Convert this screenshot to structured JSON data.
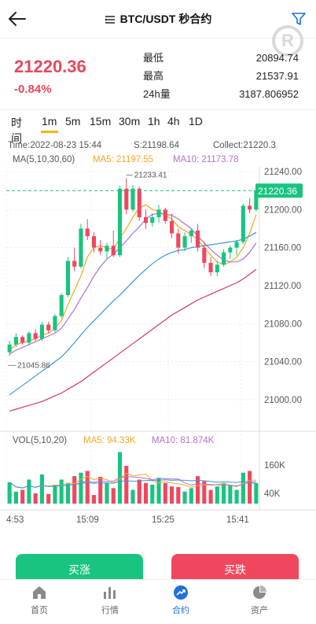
{
  "header": {
    "title": "BTC/USDT 秒合约",
    "watermark": "R"
  },
  "ticker": {
    "price": "21220.36",
    "change": "-0.84%",
    "stats": [
      {
        "label": "最低",
        "value": "20894.74"
      },
      {
        "label": "最高",
        "value": "21537.91"
      },
      {
        "label": "24h量",
        "value": "3187.806952"
      }
    ]
  },
  "timeframes": [
    "时间",
    "1m",
    "5m",
    "15m",
    "30m",
    "1h",
    "4h",
    "1D"
  ],
  "active_timeframe": "1m",
  "chart_info": {
    "time_label": "Time:2022-08-23 15:44",
    "s_label": "S:21198.64",
    "collect_label": "Collect:21220.3",
    "ma_label": "MA(5,10,30,60)",
    "ma5_label": "MA5: 21197.55",
    "ma10_label": "MA10: 21173.78",
    "high_marker": "21233.41",
    "low_marker": "21045.86",
    "current_price_tag": "21220.36",
    "vol_label": "VOL(5,10,20)",
    "vol_ma5": "MA5: 94.33K",
    "vol_ma10": "MA10: 81.874K"
  },
  "colors": {
    "up": "#18c47f",
    "down": "#f0475e",
    "ma5": "#f5a623",
    "ma10": "#b072c9",
    "ma30": "#3a96dd",
    "ma60": "#d6336c",
    "accent": "#1f6fe0"
  },
  "chart_data": {
    "type": "candlestick",
    "y_ticks": [
      "21240.00",
      "21200.00",
      "21160.00",
      "21120.00",
      "21080.00",
      "21040.00",
      "21000.00"
    ],
    "ylim": [
      20990,
      21245
    ],
    "x_ticks": [
      "4:53",
      "15:09",
      "15:25",
      "15:41"
    ],
    "vol_ticks": [
      "160K",
      "40K"
    ],
    "candles": [
      {
        "o": 21050,
        "h": 21062,
        "l": 21046,
        "c": 21058
      },
      {
        "o": 21058,
        "h": 21070,
        "l": 21055,
        "c": 21066
      },
      {
        "o": 21066,
        "h": 21068,
        "l": 21058,
        "c": 21060
      },
      {
        "o": 21060,
        "h": 21072,
        "l": 21057,
        "c": 21070
      },
      {
        "o": 21070,
        "h": 21074,
        "l": 21062,
        "c": 21064
      },
      {
        "o": 21064,
        "h": 21082,
        "l": 21062,
        "c": 21079
      },
      {
        "o": 21079,
        "h": 21082,
        "l": 21070,
        "c": 21073
      },
      {
        "o": 21073,
        "h": 21090,
        "l": 21071,
        "c": 21088
      },
      {
        "o": 21088,
        "h": 21112,
        "l": 21086,
        "c": 21110
      },
      {
        "o": 21110,
        "h": 21150,
        "l": 21108,
        "c": 21146
      },
      {
        "o": 21146,
        "h": 21160,
        "l": 21135,
        "c": 21140
      },
      {
        "o": 21140,
        "h": 21185,
        "l": 21138,
        "c": 21180
      },
      {
        "o": 21180,
        "h": 21190,
        "l": 21168,
        "c": 21172
      },
      {
        "o": 21172,
        "h": 21176,
        "l": 21155,
        "c": 21160
      },
      {
        "o": 21160,
        "h": 21168,
        "l": 21152,
        "c": 21156
      },
      {
        "o": 21156,
        "h": 21165,
        "l": 21148,
        "c": 21162
      },
      {
        "o": 21162,
        "h": 21178,
        "l": 21150,
        "c": 21152
      },
      {
        "o": 21152,
        "h": 21225,
        "l": 21150,
        "c": 21222
      },
      {
        "o": 21222,
        "h": 21233,
        "l": 21195,
        "c": 21200
      },
      {
        "o": 21200,
        "h": 21226,
        "l": 21198,
        "c": 21222
      },
      {
        "o": 21222,
        "h": 21224,
        "l": 21188,
        "c": 21192
      },
      {
        "o": 21192,
        "h": 21200,
        "l": 21180,
        "c": 21186
      },
      {
        "o": 21186,
        "h": 21196,
        "l": 21182,
        "c": 21192
      },
      {
        "o": 21192,
        "h": 21205,
        "l": 21186,
        "c": 21200
      },
      {
        "o": 21200,
        "h": 21202,
        "l": 21185,
        "c": 21188
      },
      {
        "o": 21188,
        "h": 21196,
        "l": 21170,
        "c": 21175
      },
      {
        "o": 21175,
        "h": 21180,
        "l": 21154,
        "c": 21160
      },
      {
        "o": 21160,
        "h": 21176,
        "l": 21156,
        "c": 21172
      },
      {
        "o": 21172,
        "h": 21180,
        "l": 21165,
        "c": 21178
      },
      {
        "o": 21178,
        "h": 21185,
        "l": 21156,
        "c": 21160
      },
      {
        "o": 21160,
        "h": 21166,
        "l": 21138,
        "c": 21144
      },
      {
        "o": 21144,
        "h": 21150,
        "l": 21130,
        "c": 21134
      },
      {
        "o": 21134,
        "h": 21146,
        "l": 21130,
        "c": 21142
      },
      {
        "o": 21142,
        "h": 21158,
        "l": 21140,
        "c": 21155
      },
      {
        "o": 21155,
        "h": 21162,
        "l": 21148,
        "c": 21160
      },
      {
        "o": 21160,
        "h": 21168,
        "l": 21152,
        "c": 21166
      },
      {
        "o": 21166,
        "h": 21206,
        "l": 21164,
        "c": 21204
      },
      {
        "o": 21204,
        "h": 21212,
        "l": 21196,
        "c": 21200
      },
      {
        "o": 21200,
        "h": 21225,
        "l": 21198,
        "c": 21220
      }
    ],
    "volumes": [
      62,
      35,
      40,
      70,
      30,
      85,
      28,
      55,
      70,
      60,
      80,
      90,
      95,
      25,
      78,
      60,
      45,
      150,
      110,
      40,
      70,
      60,
      55,
      75,
      60,
      50,
      48,
      35,
      45,
      80,
      65,
      40,
      50,
      60,
      55,
      40,
      90,
      95,
      60
    ],
    "ma_lines": {
      "ma5": [
        21052,
        21058,
        21060,
        21062,
        21064,
        21068,
        21070,
        21075,
        21083,
        21100,
        21115,
        21130,
        21150,
        21160,
        21162,
        21160,
        21158,
        21170,
        21180,
        21192,
        21202,
        21205,
        21200,
        21198,
        21194,
        21190,
        21182,
        21178,
        21174,
        21168,
        21160,
        21152,
        21145,
        21142,
        21145,
        21150,
        21160,
        21175,
        21195
      ],
      "ma10": [
        21048,
        21052,
        21055,
        21058,
        21061,
        21064,
        21067,
        21070,
        21075,
        21085,
        21095,
        21107,
        21118,
        21130,
        21140,
        21148,
        21153,
        21160,
        21167,
        21175,
        21182,
        21190,
        21195,
        21196,
        21195,
        21194,
        21190,
        21185,
        21180,
        21172,
        21165,
        21158,
        21152,
        21147,
        21145,
        21145,
        21148,
        21155,
        21165
      ],
      "ma30": [
        21005,
        21010,
        21015,
        21020,
        21025,
        21030,
        21035,
        21040,
        21045,
        21052,
        21060,
        21068,
        21076,
        21083,
        21090,
        21097,
        21104,
        21110,
        21117,
        21124,
        21131,
        21137,
        21143,
        21148,
        21152,
        21155,
        21157,
        21158,
        21160,
        21161,
        21162,
        21163,
        21164,
        21165,
        21166,
        21167,
        21169,
        21172,
        21176
      ],
      "ma60": [
        20988,
        20990,
        20992,
        20994,
        20996,
        20998,
        21001,
        21004,
        21007,
        21011,
        21015,
        21019,
        21024,
        21029,
        21034,
        21039,
        21044,
        21049,
        21054,
        21059,
        21064,
        21069,
        21074,
        21079,
        21084,
        21089,
        21093,
        21097,
        21101,
        21105,
        21108,
        21111,
        21114,
        21117,
        21120,
        21123,
        21127,
        21132,
        21137
      ]
    }
  },
  "actions": {
    "buy": "买涨",
    "sell": "买跌"
  },
  "tabbar": [
    {
      "label": "首页",
      "icon": "home-icon"
    },
    {
      "label": "行情",
      "icon": "chart-bars-icon"
    },
    {
      "label": "合约",
      "icon": "trend-icon",
      "active": true
    },
    {
      "label": "资产",
      "icon": "pie-icon"
    }
  ]
}
